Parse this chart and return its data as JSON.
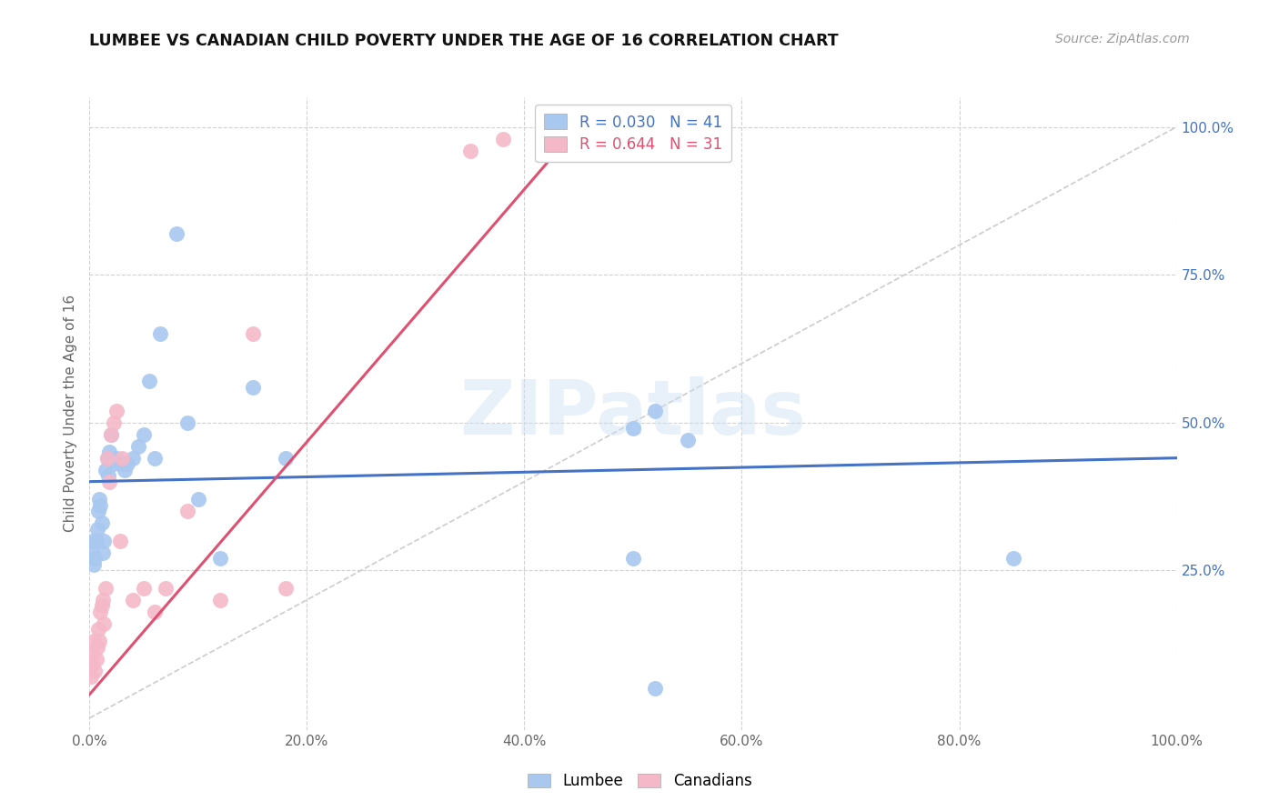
{
  "title": "LUMBEE VS CANADIAN CHILD POVERTY UNDER THE AGE OF 16 CORRELATION CHART",
  "source": "Source: ZipAtlas.com",
  "ylabel": "Child Poverty Under the Age of 16",
  "xlim": [
    0,
    1
  ],
  "ylim": [
    -0.02,
    1.05
  ],
  "xtick_labels": [
    "0.0%",
    "20.0%",
    "40.0%",
    "60.0%",
    "80.0%",
    "100.0%"
  ],
  "xtick_vals": [
    0,
    0.2,
    0.4,
    0.6,
    0.8,
    1.0
  ],
  "ytick_labels": [
    "25.0%",
    "50.0%",
    "75.0%",
    "100.0%"
  ],
  "ytick_vals": [
    0.25,
    0.5,
    0.75,
    1.0
  ],
  "lumbee_R": 0.03,
  "lumbee_N": 41,
  "canadian_R": 0.644,
  "canadian_N": 31,
  "lumbee_color": "#a8c8f0",
  "canadian_color": "#f5b8c8",
  "lumbee_line_color": "#4472c4",
  "canadian_line_color": "#e05070",
  "diagonal_color": "#cccccc",
  "background_color": "#ffffff",
  "lumbee_x": [
    0.002,
    0.003,
    0.004,
    0.005,
    0.006,
    0.007,
    0.008,
    0.009,
    0.01,
    0.011,
    0.012,
    0.013,
    0.015,
    0.016,
    0.017,
    0.018,
    0.02,
    0.022,
    0.025,
    0.028,
    0.03,
    0.032,
    0.035,
    0.04,
    0.045,
    0.05,
    0.055,
    0.06,
    0.065,
    0.08,
    0.09,
    0.1,
    0.12,
    0.15,
    0.18,
    0.5,
    0.52,
    0.55,
    0.85,
    0.5,
    0.52
  ],
  "lumbee_y": [
    0.28,
    0.3,
    0.26,
    0.27,
    0.3,
    0.32,
    0.35,
    0.37,
    0.36,
    0.33,
    0.28,
    0.3,
    0.42,
    0.44,
    0.41,
    0.45,
    0.48,
    0.43,
    0.44,
    0.43,
    0.43,
    0.42,
    0.43,
    0.44,
    0.46,
    0.48,
    0.57,
    0.44,
    0.65,
    0.82,
    0.5,
    0.37,
    0.27,
    0.56,
    0.44,
    0.49,
    0.52,
    0.47,
    0.27,
    0.27,
    0.05
  ],
  "canadian_x": [
    0.001,
    0.002,
    0.003,
    0.004,
    0.005,
    0.006,
    0.007,
    0.008,
    0.009,
    0.01,
    0.011,
    0.012,
    0.013,
    0.015,
    0.016,
    0.018,
    0.02,
    0.022,
    0.025,
    0.028,
    0.03,
    0.04,
    0.05,
    0.06,
    0.07,
    0.09,
    0.12,
    0.15,
    0.18,
    0.35,
    0.38
  ],
  "canadian_y": [
    0.07,
    0.09,
    0.11,
    0.13,
    0.08,
    0.1,
    0.12,
    0.15,
    0.13,
    0.18,
    0.19,
    0.2,
    0.16,
    0.22,
    0.44,
    0.4,
    0.48,
    0.5,
    0.52,
    0.3,
    0.44,
    0.2,
    0.22,
    0.18,
    0.22,
    0.35,
    0.2,
    0.65,
    0.22,
    0.96,
    0.98
  ],
  "watermark": "ZIPatlas",
  "lumbee_line_x": [
    0.0,
    1.0
  ],
  "lumbee_line_y": [
    0.4,
    0.44
  ],
  "canadian_line_x": [
    0.0,
    0.44
  ],
  "canadian_line_y": [
    0.04,
    0.98
  ]
}
